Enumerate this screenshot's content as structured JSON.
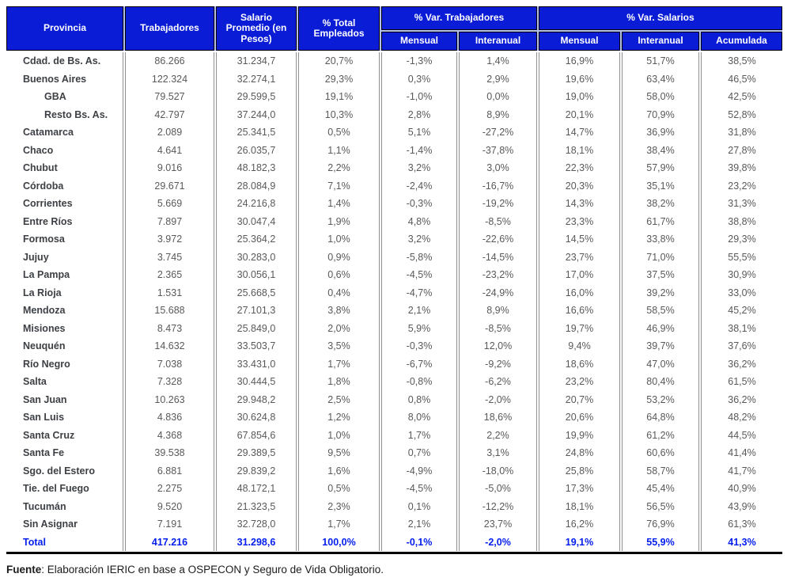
{
  "table": {
    "headers": {
      "provincia": "Provincia",
      "trabajadores": "Trabajadores",
      "salario_promedio": "Salario Promedio (en Pesos)",
      "pct_total_empleados": "% Total Empleados",
      "var_trabajadores_group": "% Var. Trabajadores",
      "var_salarios_group": "% Var. Salarios",
      "var_trab_mensual": "Mensual",
      "var_trab_interanual": "Interanual",
      "var_sal_mensual": "Mensual",
      "var_sal_interanual": "Interanual",
      "var_sal_acumulada": "Acumulada"
    },
    "rows": [
      {
        "name": "Cdad. de Bs. As.",
        "indent": false,
        "total": false,
        "values": [
          "86.266",
          "31.234,7",
          "20,7%",
          "-1,3%",
          "1,4%",
          "16,9%",
          "51,7%",
          "38,5%"
        ]
      },
      {
        "name": "Buenos Aires",
        "indent": false,
        "total": false,
        "values": [
          "122.324",
          "32.274,1",
          "29,3%",
          "0,3%",
          "2,9%",
          "19,6%",
          "63,4%",
          "46,5%"
        ]
      },
      {
        "name": "GBA",
        "indent": true,
        "total": false,
        "values": [
          "79.527",
          "29.599,5",
          "19,1%",
          "-1,0%",
          "0,0%",
          "19,0%",
          "58,0%",
          "42,5%"
        ]
      },
      {
        "name": "Resto Bs. As.",
        "indent": true,
        "total": false,
        "values": [
          "42.797",
          "37.244,0",
          "10,3%",
          "2,8%",
          "8,9%",
          "20,1%",
          "70,9%",
          "52,8%"
        ]
      },
      {
        "name": "Catamarca",
        "indent": false,
        "total": false,
        "values": [
          "2.089",
          "25.341,5",
          "0,5%",
          "5,1%",
          "-27,2%",
          "14,7%",
          "36,9%",
          "31,8%"
        ]
      },
      {
        "name": "Chaco",
        "indent": false,
        "total": false,
        "values": [
          "4.641",
          "26.035,7",
          "1,1%",
          "-1,4%",
          "-37,8%",
          "18,1%",
          "38,4%",
          "27,8%"
        ]
      },
      {
        "name": "Chubut",
        "indent": false,
        "total": false,
        "values": [
          "9.016",
          "48.182,3",
          "2,2%",
          "3,2%",
          "3,0%",
          "22,3%",
          "57,9%",
          "39,8%"
        ]
      },
      {
        "name": "Córdoba",
        "indent": false,
        "total": false,
        "values": [
          "29.671",
          "28.084,9",
          "7,1%",
          "-2,4%",
          "-16,7%",
          "20,3%",
          "35,1%",
          "23,2%"
        ]
      },
      {
        "name": "Corrientes",
        "indent": false,
        "total": false,
        "values": [
          "5.669",
          "24.216,8",
          "1,4%",
          "-0,3%",
          "-19,2%",
          "14,3%",
          "38,2%",
          "31,3%"
        ]
      },
      {
        "name": "Entre Ríos",
        "indent": false,
        "total": false,
        "values": [
          "7.897",
          "30.047,4",
          "1,9%",
          "4,8%",
          "-8,5%",
          "23,3%",
          "61,7%",
          "38,8%"
        ]
      },
      {
        "name": "Formosa",
        "indent": false,
        "total": false,
        "values": [
          "3.972",
          "25.364,2",
          "1,0%",
          "3,2%",
          "-22,6%",
          "14,5%",
          "33,8%",
          "29,3%"
        ]
      },
      {
        "name": "Jujuy",
        "indent": false,
        "total": false,
        "values": [
          "3.745",
          "30.283,0",
          "0,9%",
          "-5,8%",
          "-14,5%",
          "23,7%",
          "71,0%",
          "55,5%"
        ]
      },
      {
        "name": "La Pampa",
        "indent": false,
        "total": false,
        "values": [
          "2.365",
          "30.056,1",
          "0,6%",
          "-4,5%",
          "-23,2%",
          "17,0%",
          "37,5%",
          "30,9%"
        ]
      },
      {
        "name": "La Rioja",
        "indent": false,
        "total": false,
        "values": [
          "1.531",
          "25.668,5",
          "0,4%",
          "-4,7%",
          "-24,9%",
          "16,0%",
          "39,2%",
          "33,0%"
        ]
      },
      {
        "name": "Mendoza",
        "indent": false,
        "total": false,
        "values": [
          "15.688",
          "27.101,3",
          "3,8%",
          "2,1%",
          "8,9%",
          "16,6%",
          "58,5%",
          "45,2%"
        ]
      },
      {
        "name": "Misiones",
        "indent": false,
        "total": false,
        "values": [
          "8.473",
          "25.849,0",
          "2,0%",
          "5,9%",
          "-8,5%",
          "19,7%",
          "46,9%",
          "38,1%"
        ]
      },
      {
        "name": "Neuquén",
        "indent": false,
        "total": false,
        "values": [
          "14.632",
          "33.503,7",
          "3,5%",
          "-0,3%",
          "12,0%",
          "9,4%",
          "39,7%",
          "37,6%"
        ]
      },
      {
        "name": "Río Negro",
        "indent": false,
        "total": false,
        "values": [
          "7.038",
          "33.431,0",
          "1,7%",
          "-6,7%",
          "-9,2%",
          "18,6%",
          "47,0%",
          "36,2%"
        ]
      },
      {
        "name": "Salta",
        "indent": false,
        "total": false,
        "values": [
          "7.328",
          "30.444,5",
          "1,8%",
          "-0,8%",
          "-6,2%",
          "23,2%",
          "80,4%",
          "61,5%"
        ]
      },
      {
        "name": "San Juan",
        "indent": false,
        "total": false,
        "values": [
          "10.263",
          "29.948,2",
          "2,5%",
          "0,8%",
          "-2,0%",
          "20,7%",
          "53,2%",
          "36,2%"
        ]
      },
      {
        "name": "San Luis",
        "indent": false,
        "total": false,
        "values": [
          "4.836",
          "30.624,8",
          "1,2%",
          "8,0%",
          "18,6%",
          "20,6%",
          "64,8%",
          "48,2%"
        ]
      },
      {
        "name": "Santa Cruz",
        "indent": false,
        "total": false,
        "values": [
          "4.368",
          "67.854,6",
          "1,0%",
          "1,7%",
          "2,2%",
          "19,9%",
          "61,2%",
          "44,5%"
        ]
      },
      {
        "name": "Santa Fe",
        "indent": false,
        "total": false,
        "values": [
          "39.538",
          "29.389,5",
          "9,5%",
          "0,7%",
          "3,1%",
          "24,8%",
          "60,6%",
          "41,4%"
        ]
      },
      {
        "name": "Sgo. del Estero",
        "indent": false,
        "total": false,
        "values": [
          "6.881",
          "29.839,2",
          "1,6%",
          "-4,9%",
          "-18,0%",
          "25,8%",
          "58,7%",
          "41,7%"
        ]
      },
      {
        "name": "Tie. del Fuego",
        "indent": false,
        "total": false,
        "values": [
          "2.275",
          "48.172,1",
          "0,5%",
          "-4,5%",
          "-5,0%",
          "17,3%",
          "45,4%",
          "40,9%"
        ]
      },
      {
        "name": "Tucumán",
        "indent": false,
        "total": false,
        "values": [
          "9.520",
          "21.323,5",
          "2,3%",
          "0,1%",
          "-12,2%",
          "18,1%",
          "56,5%",
          "43,9%"
        ]
      },
      {
        "name": "Sin Asignar",
        "indent": false,
        "total": false,
        "values": [
          "7.191",
          "32.728,0",
          "1,7%",
          "2,1%",
          "23,7%",
          "16,2%",
          "76,9%",
          "61,3%"
        ]
      },
      {
        "name": "Total",
        "indent": false,
        "total": true,
        "values": [
          "417.216",
          "31.298,6",
          "100,0%",
          "-0,1%",
          "-2,0%",
          "19,1%",
          "55,9%",
          "41,3%"
        ]
      }
    ]
  },
  "footer": {
    "fuente_label": "Fuente",
    "fuente_text": ": Elaboración IERIC en base a OSPECON y Seguro de Vida Obligatorio."
  },
  "colors": {
    "header_bg": "#0a1cd6",
    "header_text": "#ffffff",
    "header_gap": "#b3c1ea",
    "body_text": "#595959",
    "province_text": "#3d4145",
    "total_text": "#0520ee",
    "grid_line": "#8f8f8f",
    "bottom_rule": "#000000"
  }
}
